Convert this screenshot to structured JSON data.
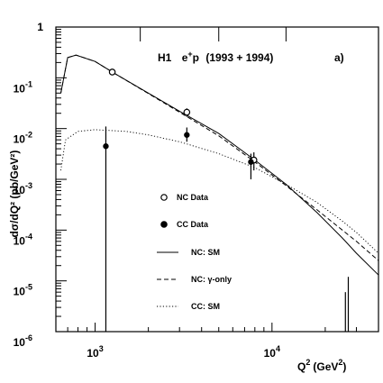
{
  "chart_data": {
    "type": "scatter",
    "title": "",
    "annotation": {
      "experiment": "H1",
      "process": "e",
      "process_sup": "+",
      "process_rest": "p",
      "years": "(1993 + 1994)"
    },
    "panel_label": "a)",
    "xlabel": {
      "base": "Q",
      "sup": "2",
      "unit": "(GeV",
      "unit_sup": "2",
      "unit_end": ")"
    },
    "ylabel": "dσ/dQ² (pb/GeV²)",
    "xlim": [
      600,
      40000
    ],
    "ylim": [
      1e-06,
      1
    ],
    "log_x": true,
    "log_y": true,
    "x_ticks": [
      {
        "value": 1000,
        "base": "10",
        "exp": "3"
      },
      {
        "value": 10000,
        "base": "10",
        "exp": "4"
      }
    ],
    "y_ticks": [
      {
        "value": 1,
        "base": "1",
        "exp": ""
      },
      {
        "value": 0.1,
        "base": "10",
        "exp": "-1"
      },
      {
        "value": 0.01,
        "base": "10",
        "exp": "-2"
      },
      {
        "value": 0.001,
        "base": "10",
        "exp": "-3"
      },
      {
        "value": 0.0001,
        "base": "10",
        "exp": "-4"
      },
      {
        "value": 1e-05,
        "base": "10",
        "exp": "-5"
      },
      {
        "value": 1e-06,
        "base": "10",
        "exp": "-6"
      }
    ],
    "bin_edges_top": [
      1800,
      5000,
      12000
    ],
    "series": [
      {
        "name": "NC Data",
        "kind": "points",
        "marker": "open-circle",
        "points": [
          {
            "x": 1250,
            "y": 0.13,
            "ylo": 0.115,
            "yhi": 0.145
          },
          {
            "x": 3300,
            "y": 0.021,
            "ylo": 0.017,
            "yhi": 0.025
          },
          {
            "x": 7900,
            "y": 0.0024,
            "ylo": 0.0015,
            "yhi": 0.0034
          }
        ]
      },
      {
        "name": "CC Data",
        "kind": "points",
        "marker": "filled-circle",
        "points": [
          {
            "x": 1150,
            "y": 0.0045,
            "ylo": 1e-06,
            "yhi": 0.011
          },
          {
            "x": 3300,
            "y": 0.0075,
            "ylo": 0.0055,
            "yhi": 0.0105
          },
          {
            "x": 7600,
            "y": 0.0022,
            "ylo": 0.001,
            "yhi": 0.0032
          },
          {
            "x": 26000,
            "y": 1e-06,
            "ylo": 1e-06,
            "yhi": 6e-06
          },
          {
            "x": 27000,
            "y": 1e-06,
            "ylo": 1e-06,
            "yhi": 1.2e-05
          }
        ]
      },
      {
        "name": "NC: SM",
        "kind": "line",
        "dash": "solid",
        "points": [
          {
            "x": 640,
            "y": 0.05
          },
          {
            "x": 700,
            "y": 0.25
          },
          {
            "x": 780,
            "y": 0.28
          },
          {
            "x": 1000,
            "y": 0.21
          },
          {
            "x": 1300,
            "y": 0.12
          },
          {
            "x": 2000,
            "y": 0.05
          },
          {
            "x": 3000,
            "y": 0.022
          },
          {
            "x": 5000,
            "y": 0.008
          },
          {
            "x": 8000,
            "y": 0.0024
          },
          {
            "x": 12000,
            "y": 0.0008
          },
          {
            "x": 18000,
            "y": 0.00022
          },
          {
            "x": 25000,
            "y": 7e-05
          },
          {
            "x": 30000,
            "y": 3.5e-05
          },
          {
            "x": 40000,
            "y": 1.3e-05
          }
        ]
      },
      {
        "name": "NC: γ-only",
        "kind": "line",
        "dash": "dashed",
        "points": [
          {
            "x": 640,
            "y": 0.05
          },
          {
            "x": 700,
            "y": 0.25
          },
          {
            "x": 780,
            "y": 0.28
          },
          {
            "x": 1000,
            "y": 0.21
          },
          {
            "x": 1300,
            "y": 0.12
          },
          {
            "x": 2000,
            "y": 0.049
          },
          {
            "x": 3000,
            "y": 0.021
          },
          {
            "x": 5000,
            "y": 0.0072
          },
          {
            "x": 8000,
            "y": 0.0022
          },
          {
            "x": 12000,
            "y": 0.00075
          },
          {
            "x": 18000,
            "y": 0.00025
          },
          {
            "x": 25000,
            "y": 0.0001
          },
          {
            "x": 30000,
            "y": 6e-05
          },
          {
            "x": 40000,
            "y": 2.5e-05
          }
        ]
      },
      {
        "name": "CC: SM",
        "kind": "line",
        "dash": "dotted",
        "points": [
          {
            "x": 640,
            "y": 0.0015
          },
          {
            "x": 680,
            "y": 0.006
          },
          {
            "x": 800,
            "y": 0.0088
          },
          {
            "x": 1000,
            "y": 0.0095
          },
          {
            "x": 1500,
            "y": 0.0088
          },
          {
            "x": 2000,
            "y": 0.0075
          },
          {
            "x": 3000,
            "y": 0.0055
          },
          {
            "x": 5000,
            "y": 0.0032
          },
          {
            "x": 8000,
            "y": 0.0017
          },
          {
            "x": 12000,
            "y": 0.0008
          },
          {
            "x": 18000,
            "y": 0.00035
          },
          {
            "x": 25000,
            "y": 0.00015
          },
          {
            "x": 30000,
            "y": 9e-05
          },
          {
            "x": 40000,
            "y": 3.5e-05
          }
        ]
      }
    ],
    "legend": [
      {
        "label": "NC Data",
        "marker": "open-circle"
      },
      {
        "label": "CC Data",
        "marker": "filled-circle"
      },
      {
        "label": "NC: SM",
        "marker": "solid"
      },
      {
        "label": "NC: γ-only",
        "marker": "dashed"
      },
      {
        "label": "CC: SM",
        "marker": "dotted"
      }
    ],
    "legend_position": "lower-left",
    "grid": false
  }
}
